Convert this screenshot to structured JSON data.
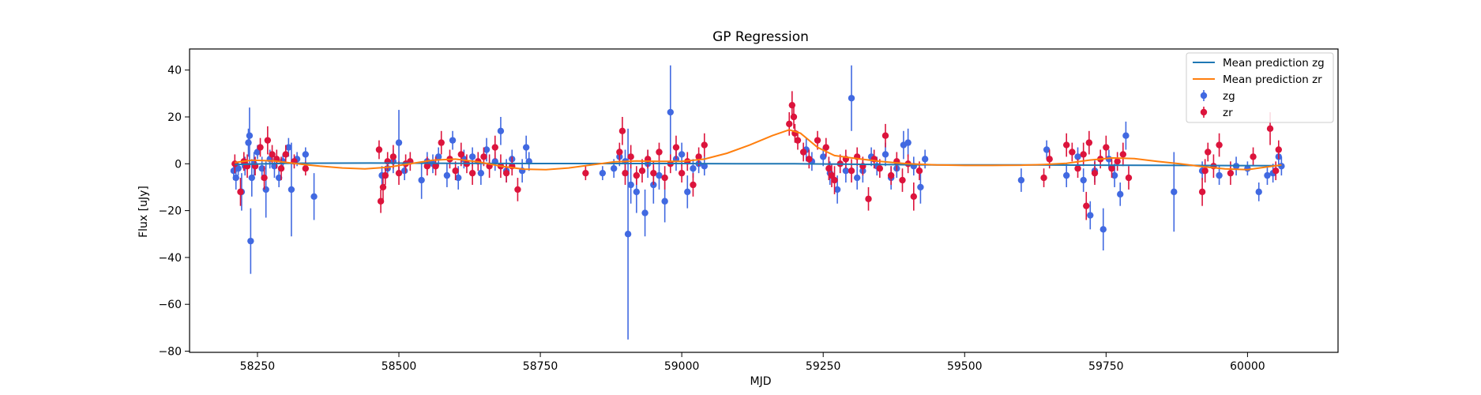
{
  "chart_data": {
    "type": "scatter",
    "title": "GP Regression",
    "xlabel": "MJD",
    "ylabel": "Flux [uJy]",
    "xlim": [
      58130,
      60160
    ],
    "ylim": [
      -80.5,
      49
    ],
    "x_ticks": [
      58250,
      58500,
      58750,
      59000,
      59250,
      59500,
      59750,
      60000
    ],
    "x_tick_labels": [
      "58250",
      "58500",
      "58750",
      "59000",
      "59250",
      "59500",
      "59750",
      "60000"
    ],
    "y_ticks": [
      -80,
      -60,
      -40,
      -20,
      0,
      20,
      40
    ],
    "y_tick_labels": [
      "−80",
      "−60",
      "−40",
      "−20",
      "0",
      "20",
      "40"
    ],
    "grid": false,
    "legend": {
      "placement": "top-right",
      "entries": [
        {
          "label": "Mean prediction zg",
          "kind": "line",
          "color": "#1f77b4"
        },
        {
          "label": "Mean prediction zr",
          "kind": "line",
          "color": "#ff7f0e"
        },
        {
          "label": "zg",
          "kind": "errorbar",
          "color": "#4169e1"
        },
        {
          "label": "zr",
          "kind": "errorbar",
          "color": "#dc143c"
        }
      ]
    },
    "lines": [
      {
        "name": "Mean prediction zg",
        "color": "#1f77b4",
        "x": [
          58210,
          58300,
          58450,
          58600,
          58750,
          58900,
          59000,
          59100,
          59200,
          59300,
          59450,
          59600,
          59750,
          59900,
          60060
        ],
        "y": [
          -0.3,
          0.2,
          0.3,
          0.2,
          0.1,
          0.1,
          0.1,
          0.0,
          0.0,
          -0.2,
          -0.5,
          -0.5,
          -0.6,
          -0.7,
          -0.8
        ]
      },
      {
        "name": "Mean prediction zr",
        "color": "#ff7f0e",
        "x": [
          58210,
          58240,
          58280,
          58320,
          58360,
          58400,
          58440,
          58480,
          58520,
          58560,
          58600,
          58640,
          58680,
          58720,
          58760,
          58800,
          58840,
          58880,
          58920,
          58960,
          59000,
          59040,
          59080,
          59120,
          59160,
          59190,
          59210,
          59240,
          59270,
          59300,
          59350,
          59400,
          59450,
          59500,
          59550,
          59600,
          59640,
          59680,
          59720,
          59760,
          59800,
          59840,
          59880,
          59920,
          59960,
          60000,
          60030,
          60060
        ],
        "y": [
          0.5,
          1.5,
          1.2,
          0.0,
          -1.0,
          -1.8,
          -2.2,
          -1.5,
          0.0,
          1.5,
          2.0,
          0.8,
          -1.0,
          -2.3,
          -2.5,
          -1.8,
          -0.5,
          0.8,
          1.2,
          1.0,
          1.0,
          2.0,
          4.5,
          8.0,
          12.0,
          14.5,
          13.0,
          7.0,
          3.5,
          2.5,
          1.0,
          0.0,
          -0.5,
          -0.7,
          -0.7,
          -0.6,
          -0.3,
          0.2,
          1.5,
          2.5,
          2.2,
          1.0,
          0.0,
          -1.2,
          -2.2,
          -2.5,
          -1.5,
          -0.5
        ]
      }
    ],
    "series": [
      {
        "name": "zg",
        "color": "#4169e1",
        "points": [
          [
            58208,
            -3,
            4
          ],
          [
            58212,
            -6,
            5
          ],
          [
            58216,
            -2,
            3
          ],
          [
            58222,
            -12,
            8
          ],
          [
            58228,
            -1,
            4
          ],
          [
            58234,
            9,
            6
          ],
          [
            58236,
            12,
            12
          ],
          [
            58238,
            -33,
            14
          ],
          [
            58240,
            -6,
            8
          ],
          [
            58244,
            0,
            5
          ],
          [
            58250,
            5,
            3
          ],
          [
            58258,
            -2,
            5
          ],
          [
            58265,
            -11,
            12
          ],
          [
            58272,
            2,
            4
          ],
          [
            58280,
            -1,
            5
          ],
          [
            58288,
            -6,
            4
          ],
          [
            58295,
            1,
            3
          ],
          [
            58305,
            7,
            4
          ],
          [
            58310,
            -11,
            20
          ],
          [
            58320,
            2,
            3
          ],
          [
            58335,
            4,
            3
          ],
          [
            58350,
            -14,
            10
          ],
          [
            58470,
            -5,
            4
          ],
          [
            58480,
            -2,
            4
          ],
          [
            58490,
            1,
            5
          ],
          [
            58500,
            9,
            14
          ],
          [
            58510,
            -3,
            4
          ],
          [
            58540,
            -7,
            8
          ],
          [
            58550,
            1,
            4
          ],
          [
            58560,
            0,
            4
          ],
          [
            58570,
            3,
            4
          ],
          [
            58585,
            -5,
            5
          ],
          [
            58595,
            10,
            4
          ],
          [
            58605,
            -6,
            5
          ],
          [
            58615,
            2,
            4
          ],
          [
            58630,
            3,
            4
          ],
          [
            58645,
            -4,
            5
          ],
          [
            58655,
            6,
            5
          ],
          [
            58670,
            1,
            4
          ],
          [
            58680,
            14,
            6
          ],
          [
            58690,
            -3,
            5
          ],
          [
            58700,
            2,
            4
          ],
          [
            58718,
            -3,
            5
          ],
          [
            58725,
            7,
            5
          ],
          [
            58730,
            1,
            4
          ],
          [
            58860,
            -4,
            3
          ],
          [
            58880,
            -2,
            4
          ],
          [
            58890,
            3,
            4
          ],
          [
            58900,
            1,
            5
          ],
          [
            58905,
            -30,
            45
          ],
          [
            58910,
            -9,
            8
          ],
          [
            58920,
            -12,
            9
          ],
          [
            58935,
            -21,
            10
          ],
          [
            58940,
            0,
            6
          ],
          [
            58950,
            -9,
            8
          ],
          [
            58960,
            -5,
            6
          ],
          [
            58970,
            -16,
            9
          ],
          [
            58980,
            22,
            20
          ],
          [
            58990,
            2,
            5
          ],
          [
            59000,
            4,
            5
          ],
          [
            59010,
            -12,
            7
          ],
          [
            59020,
            -2,
            4
          ],
          [
            59030,
            0,
            4
          ],
          [
            59040,
            -1,
            4
          ],
          [
            59220,
            6,
            5
          ],
          [
            59230,
            1,
            4
          ],
          [
            59250,
            3,
            4
          ],
          [
            59262,
            -4,
            5
          ],
          [
            59275,
            -11,
            6
          ],
          [
            59290,
            -3,
            5
          ],
          [
            59300,
            28,
            14
          ],
          [
            59310,
            -6,
            5
          ],
          [
            59320,
            -3,
            5
          ],
          [
            59335,
            3,
            4
          ],
          [
            59345,
            -1,
            4
          ],
          [
            59360,
            4,
            5
          ],
          [
            59370,
            -6,
            5
          ],
          [
            59380,
            -2,
            4
          ],
          [
            59392,
            8,
            6
          ],
          [
            59400,
            9,
            6
          ],
          [
            59410,
            -1,
            4
          ],
          [
            59422,
            -10,
            7
          ],
          [
            59430,
            2,
            4
          ],
          [
            59600,
            -7,
            5
          ],
          [
            59645,
            6,
            4
          ],
          [
            59680,
            -5,
            5
          ],
          [
            59700,
            3,
            4
          ],
          [
            59710,
            -7,
            5
          ],
          [
            59722,
            -22,
            6
          ],
          [
            59730,
            -3,
            5
          ],
          [
            59745,
            -28,
            9
          ],
          [
            59755,
            2,
            4
          ],
          [
            59765,
            -5,
            5
          ],
          [
            59775,
            -13,
            5
          ],
          [
            59785,
            12,
            6
          ],
          [
            59870,
            -12,
            17
          ],
          [
            59920,
            -3,
            4
          ],
          [
            59950,
            -5,
            4
          ],
          [
            59980,
            -1,
            4
          ],
          [
            60000,
            -2,
            3
          ],
          [
            60020,
            -12,
            4
          ],
          [
            60035,
            -5,
            4
          ],
          [
            60045,
            -4,
            4
          ],
          [
            60055,
            3,
            4
          ],
          [
            60060,
            -1,
            4
          ]
        ]
      },
      {
        "name": "zr",
        "color": "#dc143c",
        "points": [
          [
            58210,
            0,
            4
          ],
          [
            58220,
            -12,
            6
          ],
          [
            58226,
            1,
            4
          ],
          [
            58232,
            -1,
            5
          ],
          [
            58246,
            -1,
            4
          ],
          [
            58255,
            7,
            4
          ],
          [
            58262,
            -6,
            5
          ],
          [
            58268,
            10,
            6
          ],
          [
            58276,
            4,
            4
          ],
          [
            58284,
            2,
            4
          ],
          [
            58292,
            -2,
            5
          ],
          [
            58300,
            4,
            4
          ],
          [
            58315,
            1,
            3
          ],
          [
            58335,
            -2,
            3
          ],
          [
            58465,
            6,
            4
          ],
          [
            58468,
            -16,
            5
          ],
          [
            58472,
            -10,
            6
          ],
          [
            58476,
            -5,
            4
          ],
          [
            58480,
            1,
            4
          ],
          [
            58490,
            3,
            5
          ],
          [
            58500,
            -4,
            5
          ],
          [
            58512,
            0,
            4
          ],
          [
            58520,
            1,
            4
          ],
          [
            58550,
            -1,
            4
          ],
          [
            58565,
            -1,
            4
          ],
          [
            58575,
            9,
            5
          ],
          [
            58590,
            2,
            4
          ],
          [
            58600,
            -3,
            4
          ],
          [
            58610,
            4,
            5
          ],
          [
            58620,
            0,
            4
          ],
          [
            58630,
            -4,
            5
          ],
          [
            58640,
            1,
            4
          ],
          [
            58650,
            3,
            4
          ],
          [
            58660,
            -1,
            5
          ],
          [
            58670,
            7,
            5
          ],
          [
            58680,
            -1,
            5
          ],
          [
            58690,
            -4,
            4
          ],
          [
            58700,
            -1,
            4
          ],
          [
            58710,
            -11,
            5
          ],
          [
            58830,
            -4,
            3
          ],
          [
            58890,
            5,
            4
          ],
          [
            58895,
            14,
            6
          ],
          [
            58900,
            -4,
            5
          ],
          [
            58910,
            3,
            5
          ],
          [
            58920,
            -5,
            4
          ],
          [
            58930,
            -3,
            5
          ],
          [
            58940,
            2,
            4
          ],
          [
            58950,
            -4,
            5
          ],
          [
            58960,
            5,
            4
          ],
          [
            58970,
            -6,
            5
          ],
          [
            58980,
            0,
            4
          ],
          [
            58990,
            7,
            5
          ],
          [
            59000,
            -4,
            4
          ],
          [
            59010,
            1,
            4
          ],
          [
            59020,
            -9,
            5
          ],
          [
            59030,
            3,
            4
          ],
          [
            59040,
            8,
            5
          ],
          [
            59190,
            17,
            5
          ],
          [
            59195,
            25,
            6
          ],
          [
            59198,
            20,
            5
          ],
          [
            59200,
            13,
            4
          ],
          [
            59205,
            10,
            4
          ],
          [
            59215,
            5,
            4
          ],
          [
            59225,
            2,
            4
          ],
          [
            59240,
            10,
            4
          ],
          [
            59255,
            7,
            4
          ],
          [
            59260,
            -2,
            5
          ],
          [
            59265,
            -5,
            5
          ],
          [
            59270,
            -7,
            6
          ],
          [
            59280,
            0,
            4
          ],
          [
            59290,
            2,
            4
          ],
          [
            59300,
            -3,
            5
          ],
          [
            59310,
            3,
            4
          ],
          [
            59320,
            -1,
            4
          ],
          [
            59330,
            -15,
            5
          ],
          [
            59340,
            2,
            4
          ],
          [
            59350,
            -2,
            4
          ],
          [
            59360,
            12,
            5
          ],
          [
            59370,
            -5,
            4
          ],
          [
            59380,
            1,
            4
          ],
          [
            59390,
            -7,
            5
          ],
          [
            59400,
            0,
            4
          ],
          [
            59410,
            -14,
            6
          ],
          [
            59420,
            -3,
            4
          ],
          [
            59640,
            -6,
            4
          ],
          [
            59650,
            2,
            4
          ],
          [
            59680,
            8,
            5
          ],
          [
            59690,
            5,
            4
          ],
          [
            59700,
            -2,
            4
          ],
          [
            59710,
            4,
            5
          ],
          [
            59715,
            -18,
            6
          ],
          [
            59720,
            9,
            5
          ],
          [
            59730,
            -4,
            5
          ],
          [
            59740,
            2,
            4
          ],
          [
            59750,
            7,
            5
          ],
          [
            59760,
            -2,
            4
          ],
          [
            59770,
            1,
            4
          ],
          [
            59780,
            4,
            5
          ],
          [
            59790,
            -6,
            5
          ],
          [
            59920,
            -12,
            6
          ],
          [
            59925,
            -3,
            5
          ],
          [
            59930,
            5,
            4
          ],
          [
            59940,
            -1,
            5
          ],
          [
            59950,
            8,
            5
          ],
          [
            59970,
            -4,
            5
          ],
          [
            60010,
            3,
            4
          ],
          [
            60040,
            15,
            7
          ],
          [
            60050,
            -3,
            4
          ],
          [
            60055,
            6,
            4
          ]
        ]
      }
    ]
  }
}
